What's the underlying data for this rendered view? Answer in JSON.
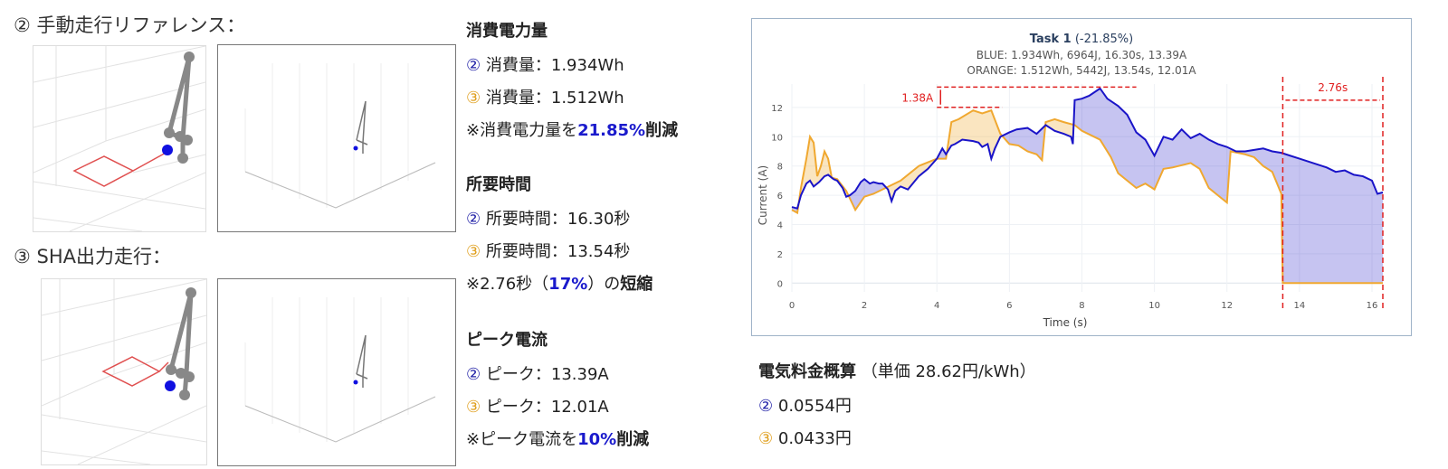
{
  "left": {
    "ref_title": "② 手動走行リファレンス：",
    "sha_title": "③ SHA出力走行："
  },
  "energy": {
    "heading": "消費電力量",
    "l2_mark": "②",
    "l2": "消費量：1.934Wh",
    "l3_mark": "③",
    "l3": "消費量：1.512Wh",
    "note_pre": "※消費電力量を",
    "note_val": "21.85%",
    "note_post": "削減"
  },
  "time": {
    "heading": "所要時間",
    "l2_mark": "②",
    "l2": "所要時間：16.30秒",
    "l3_mark": "③",
    "l3": "所要時間：13.54秒",
    "note_pre": "※2.76秒（",
    "note_val": "17%",
    "note_post": "）の",
    "note_bold": "短縮"
  },
  "peak": {
    "heading": "ピーク電流",
    "l2_mark": "②",
    "l2": "ピーク：13.39A",
    "l3_mark": "③",
    "l3": "ピーク：12.01A",
    "note_pre": "※ピーク電流を",
    "note_val": "10%",
    "note_post": "削減"
  },
  "cost": {
    "heading": "電気料金概算",
    "unit": "（単価 28.62円/kWh）",
    "l2_mark": "②",
    "l2": "0.0554円",
    "l3_mark": "③",
    "l3": "0.0433円"
  },
  "colors": {
    "blue": "#1a14c8",
    "orange": "#f0a830",
    "red": "#e02020"
  },
  "chart_data": {
    "type": "line",
    "title": "Task 1",
    "title_suffix": "(-21.85%)",
    "subtitle1": "BLUE: 1.934Wh, 6964J, 16.30s, 13.39A",
    "subtitle2": "ORANGE: 1.512Wh, 5442J, 13.54s, 12.01A",
    "xlabel": "Time (s)",
    "ylabel": "Current (A)",
    "xlim": [
      0,
      16.3
    ],
    "ylim": [
      -0.6,
      13.6
    ],
    "xticks": [
      0,
      2,
      4,
      6,
      8,
      10,
      12,
      14,
      16
    ],
    "yticks": [
      0,
      2,
      4,
      6,
      8,
      10,
      12
    ],
    "annotations": {
      "peak_diff": "1.38A",
      "time_diff": "2.76s"
    },
    "series": [
      {
        "name": "BLUE",
        "x": [
          0,
          0.15,
          0.25,
          0.4,
          0.5,
          0.6,
          0.75,
          0.9,
          1,
          1.15,
          1.25,
          1.4,
          1.5,
          1.6,
          1.75,
          1.9,
          2,
          2.15,
          2.25,
          2.4,
          2.5,
          2.65,
          2.75,
          2.85,
          3,
          3.2,
          3.5,
          3.75,
          4,
          4.15,
          4.25,
          4.4,
          4.5,
          4.7,
          5,
          5.15,
          5.25,
          5.4,
          5.5,
          5.6,
          5.75,
          6,
          6.2,
          6.5,
          6.75,
          7,
          7.25,
          7.5,
          7.7,
          7.75,
          7.8,
          8,
          8.2,
          8.5,
          8.7,
          9,
          9.25,
          9.5,
          9.75,
          10,
          10.25,
          10.5,
          10.75,
          11,
          11.25,
          11.5,
          11.75,
          12,
          12.25,
          12.5,
          12.75,
          13,
          13.25,
          13.5,
          13.75,
          14,
          14.25,
          14.5,
          14.75,
          15,
          15.25,
          15.5,
          15.75,
          16,
          16.15,
          16.3
        ],
        "values": [
          5.2,
          5.1,
          6,
          6.8,
          7,
          6.6,
          6.9,
          7.3,
          7.4,
          7.1,
          7,
          6.5,
          5.9,
          6,
          6.3,
          6.9,
          7.1,
          6.8,
          6.9,
          6.8,
          6.8,
          6.4,
          5.6,
          6.3,
          6.6,
          6.4,
          7.3,
          7.8,
          8.5,
          9.2,
          8.8,
          9.4,
          9.5,
          9.8,
          9.7,
          9.6,
          9.3,
          9.5,
          8.5,
          9.2,
          10,
          10.3,
          10.5,
          10.6,
          10.2,
          10.8,
          10.4,
          10.2,
          10,
          9.5,
          12.5,
          12.6,
          12.8,
          13.3,
          12.6,
          12.1,
          11.5,
          10.3,
          9.8,
          8.7,
          10,
          9.8,
          10.5,
          9.9,
          10.2,
          9.8,
          9.5,
          9.3,
          9,
          9,
          9.1,
          9.2,
          9,
          8.9,
          8.7,
          8.5,
          8.3,
          8.1,
          7.9,
          7.6,
          7.7,
          7.4,
          7.3,
          7,
          6.1,
          6.2
        ]
      },
      {
        "name": "ORANGE",
        "x": [
          0,
          0.15,
          0.25,
          0.4,
          0.5,
          0.6,
          0.7,
          0.8,
          0.9,
          1,
          1.1,
          1.25,
          1.5,
          1.75,
          2,
          2.25,
          2.5,
          3,
          3.5,
          4,
          4.25,
          4.4,
          4.6,
          5,
          5.25,
          5.5,
          5.75,
          6,
          6.25,
          6.5,
          6.75,
          6.9,
          7,
          7.25,
          7.5,
          7.8,
          8,
          8.5,
          8.8,
          9,
          9.25,
          9.5,
          9.75,
          10,
          10.25,
          10.5,
          11,
          11.25,
          11.5,
          11.75,
          12,
          12.1,
          12.5,
          12.75,
          13,
          13.25,
          13.5,
          13.54,
          16.3
        ],
        "values": [
          5,
          4.8,
          6.5,
          8.5,
          10,
          9.6,
          7.3,
          8,
          9,
          8.5,
          7.2,
          7.1,
          6.3,
          5,
          5.9,
          6.1,
          6.4,
          7,
          8,
          8.5,
          8.5,
          11,
          11.2,
          11.8,
          11.6,
          11.8,
          10.2,
          9.5,
          9.4,
          9,
          8.8,
          8.4,
          11,
          11.2,
          11,
          10.8,
          10.4,
          9.8,
          8.6,
          7.5,
          7,
          6.5,
          6.8,
          6.4,
          7.8,
          7.9,
          8.2,
          7.8,
          6.5,
          6,
          5.5,
          9,
          8.8,
          8.6,
          8,
          7.6,
          6.1,
          0,
          0
        ]
      }
    ]
  }
}
